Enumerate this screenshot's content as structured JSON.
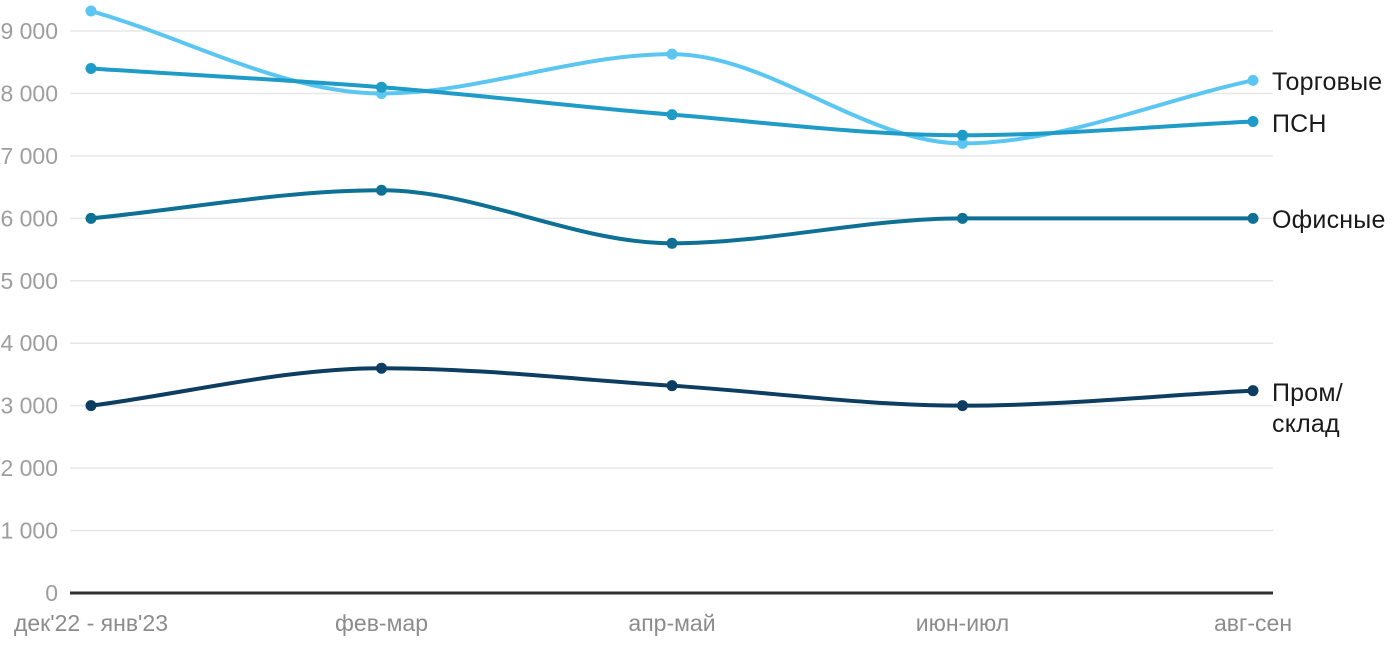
{
  "chart_data": {
    "type": "line",
    "title": "",
    "categories": [
      "дек'22 - янв'23",
      "фев-мар",
      "апр-май",
      "июн-июл",
      "авг-сен"
    ],
    "series": [
      {
        "name": "Торговые",
        "label": "Торговые",
        "color": "#5bc6f1",
        "values": [
          9320,
          8000,
          8630,
          7200,
          8210
        ]
      },
      {
        "name": "ПСН",
        "label": "ПСН",
        "color": "#1f9bc7",
        "values": [
          8400,
          8100,
          7660,
          7330,
          7550
        ]
      },
      {
        "name": "Офисные",
        "label": "Офисные",
        "color": "#0e7094",
        "values": [
          6000,
          6450,
          5600,
          6000,
          6000
        ]
      },
      {
        "name": "Пром/склад",
        "label": "Пром/\nсклад",
        "color": "#0d3e61",
        "values": [
          3000,
          3600,
          3320,
          3000,
          3240
        ]
      }
    ],
    "y_axis": {
      "min": 0,
      "max": 9000,
      "step": 1000,
      "tick_labels": [
        "0",
        "1 000",
        "2 000",
        "3 000",
        "4 000",
        "5 000",
        "6 000",
        "7 000",
        "8 000",
        "9 000"
      ]
    },
    "x_axis": {
      "labels": [
        "дек'22 - янв'23",
        "фев-мар",
        "апр-май",
        "июн-июл",
        "авг-сен"
      ]
    },
    "grid": true,
    "legend_position": "right-end-labels",
    "colors": {
      "grid_line": "#e7e7e7",
      "axis_line": "#2f2f2f",
      "y_tick_label": "#9e9e9e",
      "x_tick_label": "#8c8c8c",
      "series_label_text": "#1a1a1a",
      "background": "#ffffff"
    }
  }
}
